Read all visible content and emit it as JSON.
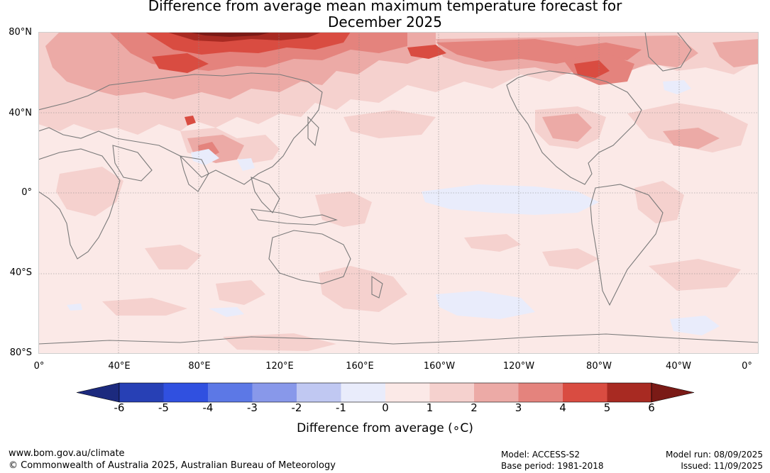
{
  "title": {
    "line1": "Difference from average mean maximum temperature forecast for",
    "line2": "December 2025"
  },
  "map": {
    "lat_labels": [
      "80°N",
      "40°N",
      "0°",
      "40°S",
      "80°S"
    ],
    "lon_labels": [
      "0°",
      "40°E",
      "80°E",
      "120°E",
      "160°E",
      "160°W",
      "120°W",
      "80°W",
      "40°W",
      "0°"
    ],
    "background_color": "#fbe9e7"
  },
  "colorbar": {
    "ticks": [
      "-6",
      "-5",
      "-4",
      "-3",
      "-2",
      "-1",
      "0",
      "1",
      "2",
      "3",
      "4",
      "5",
      "6"
    ],
    "colors": [
      "#1c2a7e",
      "#2740b5",
      "#3050e0",
      "#5c78e6",
      "#8898ea",
      "#c0c8f2",
      "#e9ecfb",
      "#fbe9e7",
      "#f5d1ce",
      "#ecaaa6",
      "#e4837d",
      "#d94c41",
      "#a82a22",
      "#7a1a16"
    ],
    "label": "Difference from average (∘C)"
  },
  "footer": {
    "website": "www.bom.gov.au/climate",
    "copyright": "© Commonwealth of Australia 2025, Australian Bureau of Meteorology",
    "model": "Model: ACCESS-S2",
    "base_period": "Base period: 1981-2018",
    "model_run": "Model run: 08/09/2025",
    "issued": "Issued: 11/09/2025"
  }
}
